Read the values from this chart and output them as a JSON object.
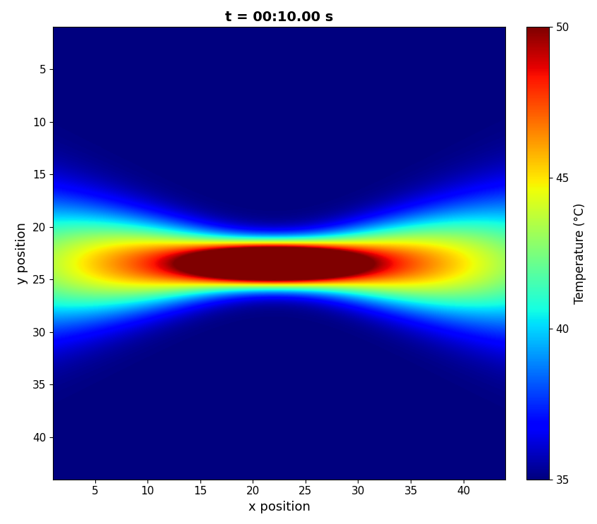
{
  "title": "t = 00:10.00 s",
  "xlabel": "x position",
  "ylabel": "y position",
  "colorbar_label": "Temperature (°C)",
  "vmin": 35,
  "vmax": 50,
  "T_background": 35.0,
  "grid_size": 44,
  "focal_x": 22.0,
  "focal_y": 23.5,
  "x_ticks": [
    5,
    10,
    15,
    20,
    25,
    30,
    35,
    40
  ],
  "y_ticks": [
    5,
    10,
    15,
    20,
    25,
    30,
    35,
    40
  ],
  "figsize": [
    8.46,
    7.43
  ],
  "dpi": 100,
  "background_color": "white",
  "title_fontsize": 14,
  "label_fontsize": 13,
  "tick_fontsize": 11,
  "colorbar_fontsize": 12
}
